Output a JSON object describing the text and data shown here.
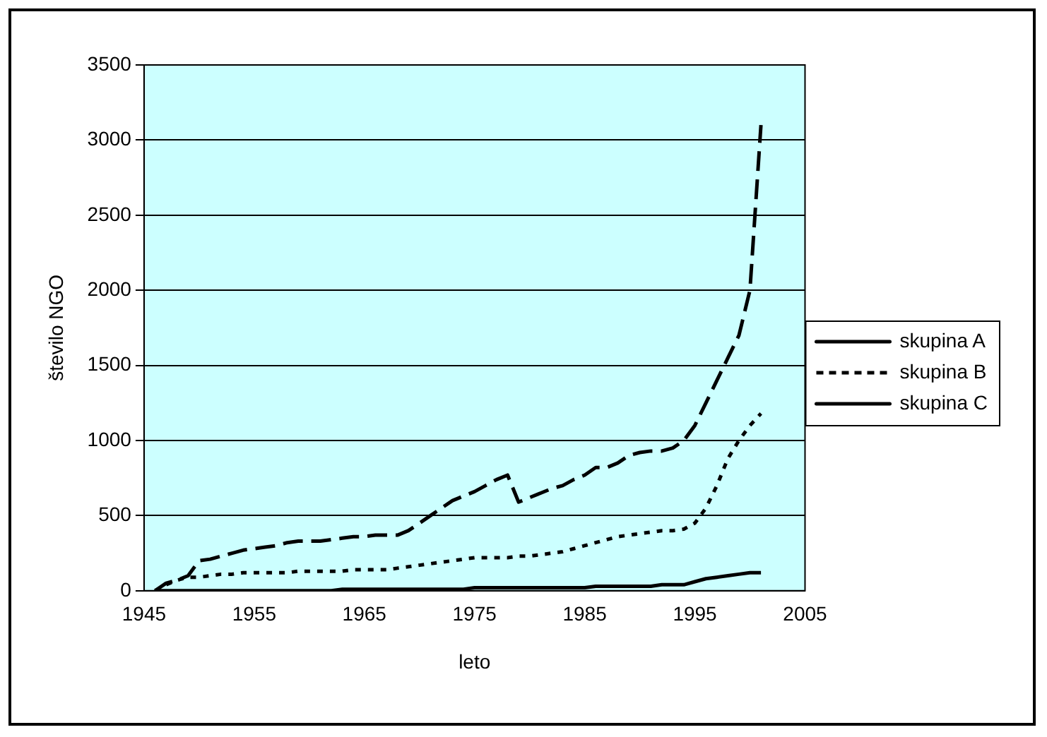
{
  "chart_data": {
    "type": "line",
    "xlabel": "leto",
    "ylabel": "število NGO",
    "x": [
      1946,
      1947,
      1948,
      1949,
      1950,
      1951,
      1952,
      1953,
      1954,
      1955,
      1956,
      1957,
      1958,
      1959,
      1960,
      1961,
      1962,
      1963,
      1964,
      1965,
      1966,
      1967,
      1968,
      1969,
      1970,
      1971,
      1972,
      1973,
      1974,
      1975,
      1976,
      1977,
      1978,
      1979,
      1980,
      1981,
      1982,
      1983,
      1984,
      1985,
      1986,
      1987,
      1988,
      1989,
      1990,
      1991,
      1992,
      1993,
      1994,
      1995,
      1996,
      1997,
      1998,
      1999,
      2000,
      2001
    ],
    "series": [
      {
        "name": "skupina A",
        "color": "#000000",
        "line_style": "dashed",
        "values": [
          0,
          50,
          70,
          100,
          200,
          210,
          230,
          250,
          270,
          280,
          290,
          300,
          320,
          330,
          330,
          330,
          340,
          350,
          360,
          360,
          370,
          370,
          370,
          400,
          450,
          500,
          550,
          600,
          630,
          660,
          700,
          740,
          770,
          590,
          620,
          650,
          680,
          700,
          740,
          770,
          820,
          820,
          850,
          900,
          920,
          930,
          930,
          950,
          1000,
          1100,
          1250,
          1400,
          1550,
          1700,
          2000,
          3100
        ]
      },
      {
        "name": "skupina B",
        "color": "#000000",
        "line_style": "dotted",
        "values": [
          0,
          40,
          70,
          90,
          90,
          100,
          110,
          110,
          120,
          120,
          120,
          120,
          120,
          130,
          130,
          130,
          130,
          130,
          140,
          140,
          140,
          140,
          150,
          160,
          170,
          180,
          190,
          200,
          210,
          220,
          220,
          220,
          220,
          230,
          230,
          240,
          250,
          260,
          280,
          300,
          320,
          340,
          360,
          370,
          380,
          390,
          400,
          400,
          410,
          450,
          550,
          700,
          880,
          1000,
          1100,
          1180
        ]
      },
      {
        "name": "skupina C",
        "color": "#000000",
        "line_style": "solid",
        "values": [
          0,
          0,
          0,
          0,
          0,
          0,
          0,
          0,
          0,
          0,
          0,
          0,
          0,
          0,
          0,
          0,
          0,
          10,
          10,
          10,
          10,
          10,
          10,
          10,
          10,
          10,
          10,
          10,
          10,
          20,
          20,
          20,
          20,
          20,
          20,
          20,
          20,
          20,
          20,
          20,
          30,
          30,
          30,
          30,
          30,
          30,
          40,
          40,
          40,
          60,
          80,
          90,
          100,
          110,
          120,
          120
        ]
      }
    ],
    "xlim": [
      1945,
      2005
    ],
    "xticks": [
      1945,
      1955,
      1965,
      1975,
      1985,
      1995,
      2005
    ],
    "ylim": [
      0,
      3500
    ],
    "yticks": [
      0,
      500,
      1000,
      1500,
      2000,
      2500,
      3000,
      3500
    ],
    "grid": "y",
    "legend": "right",
    "marker": "none"
  }
}
